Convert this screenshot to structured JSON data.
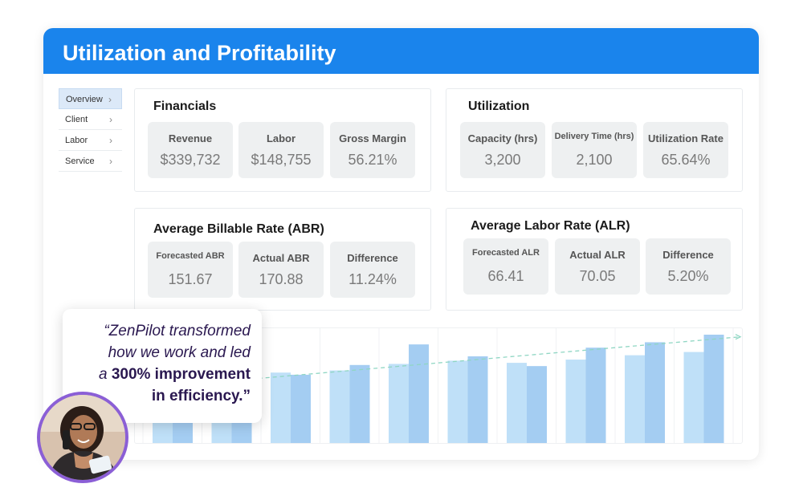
{
  "window": {
    "title": "Utilization and Profitability"
  },
  "sidebar": {
    "items": [
      {
        "label": "Overview"
      },
      {
        "label": "Client"
      },
      {
        "label": "Labor"
      },
      {
        "label": "Service"
      }
    ]
  },
  "financials": {
    "title": "Financials",
    "tiles": [
      {
        "label": "Revenue",
        "value": "$339,732"
      },
      {
        "label": "Labor",
        "value": "$148,755"
      },
      {
        "label": "Gross Margin",
        "value": "56.21%"
      }
    ]
  },
  "utilization": {
    "title": "Utilization",
    "tiles": [
      {
        "label": "Capacity (hrs)",
        "value": "3,200"
      },
      {
        "label": "Delivery Time (hrs)",
        "value": "2,100"
      },
      {
        "label": "Utilization Rate",
        "value": "65.64%"
      }
    ]
  },
  "abr": {
    "title": "Average Billable Rate (ABR)",
    "tiles": [
      {
        "label": "Forecasted ABR",
        "value": "151.67"
      },
      {
        "label": "Actual ABR",
        "value": "170.88"
      },
      {
        "label": "Difference",
        "value": "11.24%"
      }
    ]
  },
  "alr": {
    "title": "Average Labor Rate (ALR)",
    "tiles": [
      {
        "label": "Forecasted ALR",
        "value": "66.41"
      },
      {
        "label": "Actual ALR",
        "value": "70.05"
      },
      {
        "label": "Difference",
        "value": "5.20%"
      }
    ]
  },
  "chart_data": {
    "type": "bar",
    "title": "",
    "xlabel": "",
    "ylabel": "",
    "ylim": [
      0,
      100
    ],
    "grid": "vertical",
    "categories": [
      "",
      "",
      "",
      "",
      "",
      "",
      "",
      "",
      "",
      ""
    ],
    "series": [
      {
        "values": [
          20,
          28,
          65,
          67,
          73,
          76,
          74,
          77,
          81,
          84
        ]
      },
      {
        "values": [
          25,
          45,
          63,
          72,
          91,
          80,
          71,
          88,
          93,
          100
        ]
      }
    ],
    "trendline": true,
    "colors": {
      "series1": "#bfe0f8",
      "series2": "#a4cdf2",
      "trend": "#8fd6c3"
    }
  },
  "testimonial": {
    "line1": "“ZenPilot transformed",
    "line2": "how we work and led",
    "line3_prefix": "a ",
    "line3_bold": "300% improvement",
    "line4_bold": "in efficiency.”"
  },
  "colors": {
    "accent": "#1a84ec",
    "avatar_ring": "#8b5fd6",
    "quote_text": "#2a1850"
  }
}
